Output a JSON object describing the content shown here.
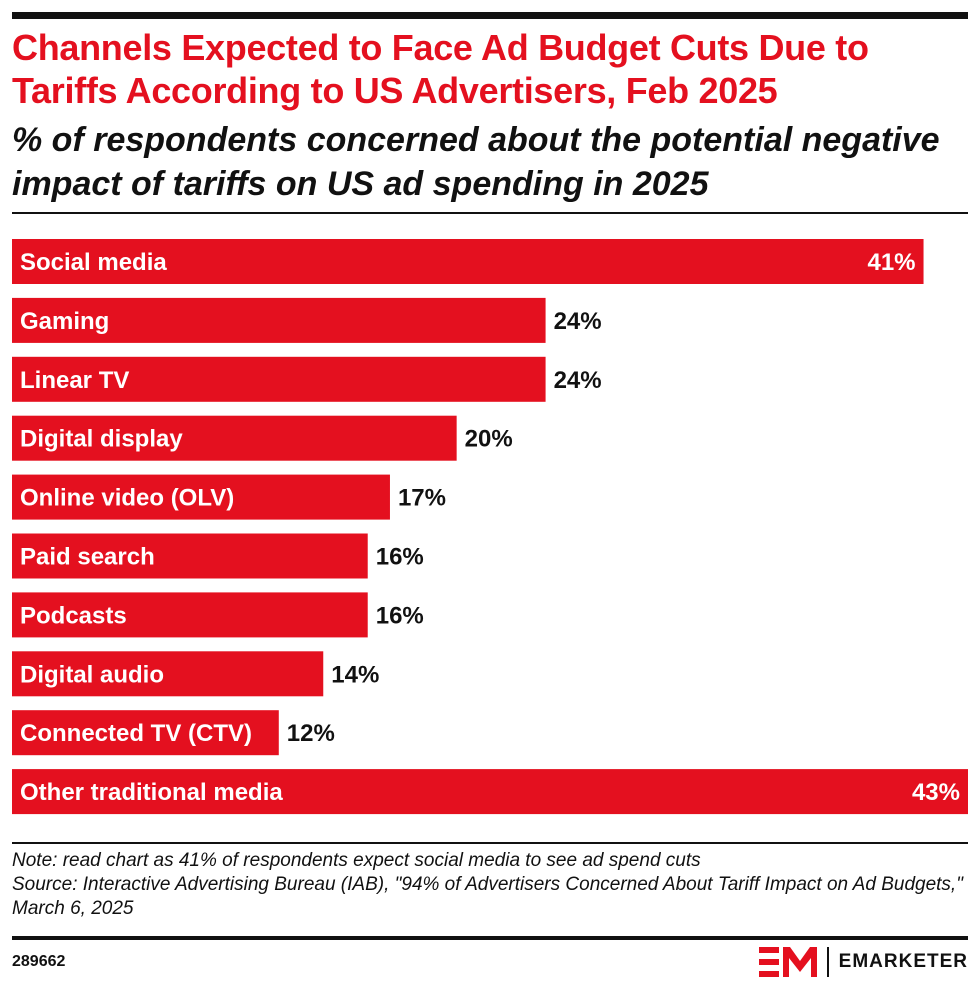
{
  "colors": {
    "accent": "#e4101f",
    "text": "#111111",
    "label_on_bar": "#ffffff"
  },
  "chart_data": {
    "type": "bar",
    "orientation": "horizontal",
    "title": "Channels Expected to Face Ad Budget Cuts Due to Tariffs According to US Advertisers, Feb 2025",
    "subtitle": "% of respondents concerned about the potential negative impact of tariffs on US ad spending in 2025",
    "categories": [
      "Social media",
      "Gaming",
      "Linear TV",
      "Digital display",
      "Online video (OLV)",
      "Paid search",
      "Podcasts",
      "Digital audio",
      "Connected TV (CTV)",
      "Other traditional media"
    ],
    "values": [
      41,
      24,
      24,
      20,
      17,
      16,
      16,
      14,
      12,
      43
    ],
    "value_labels": [
      "41%",
      "24%",
      "24%",
      "20%",
      "17%",
      "16%",
      "16%",
      "14%",
      "12%",
      "43%"
    ],
    "unit": "%",
    "xlim": [
      0,
      43
    ],
    "grid": false,
    "legend": "none"
  },
  "footer": {
    "note": "Note: read chart as 41% of respondents expect social media to see ad spend cuts",
    "source": "Source: Interactive Advertising Bureau (IAB), \"94% of Advertisers Concerned About Tariff Impact on Ad Budgets,\" March 6, 2025",
    "chart_id": "289662",
    "brand": "EMARKETER"
  }
}
